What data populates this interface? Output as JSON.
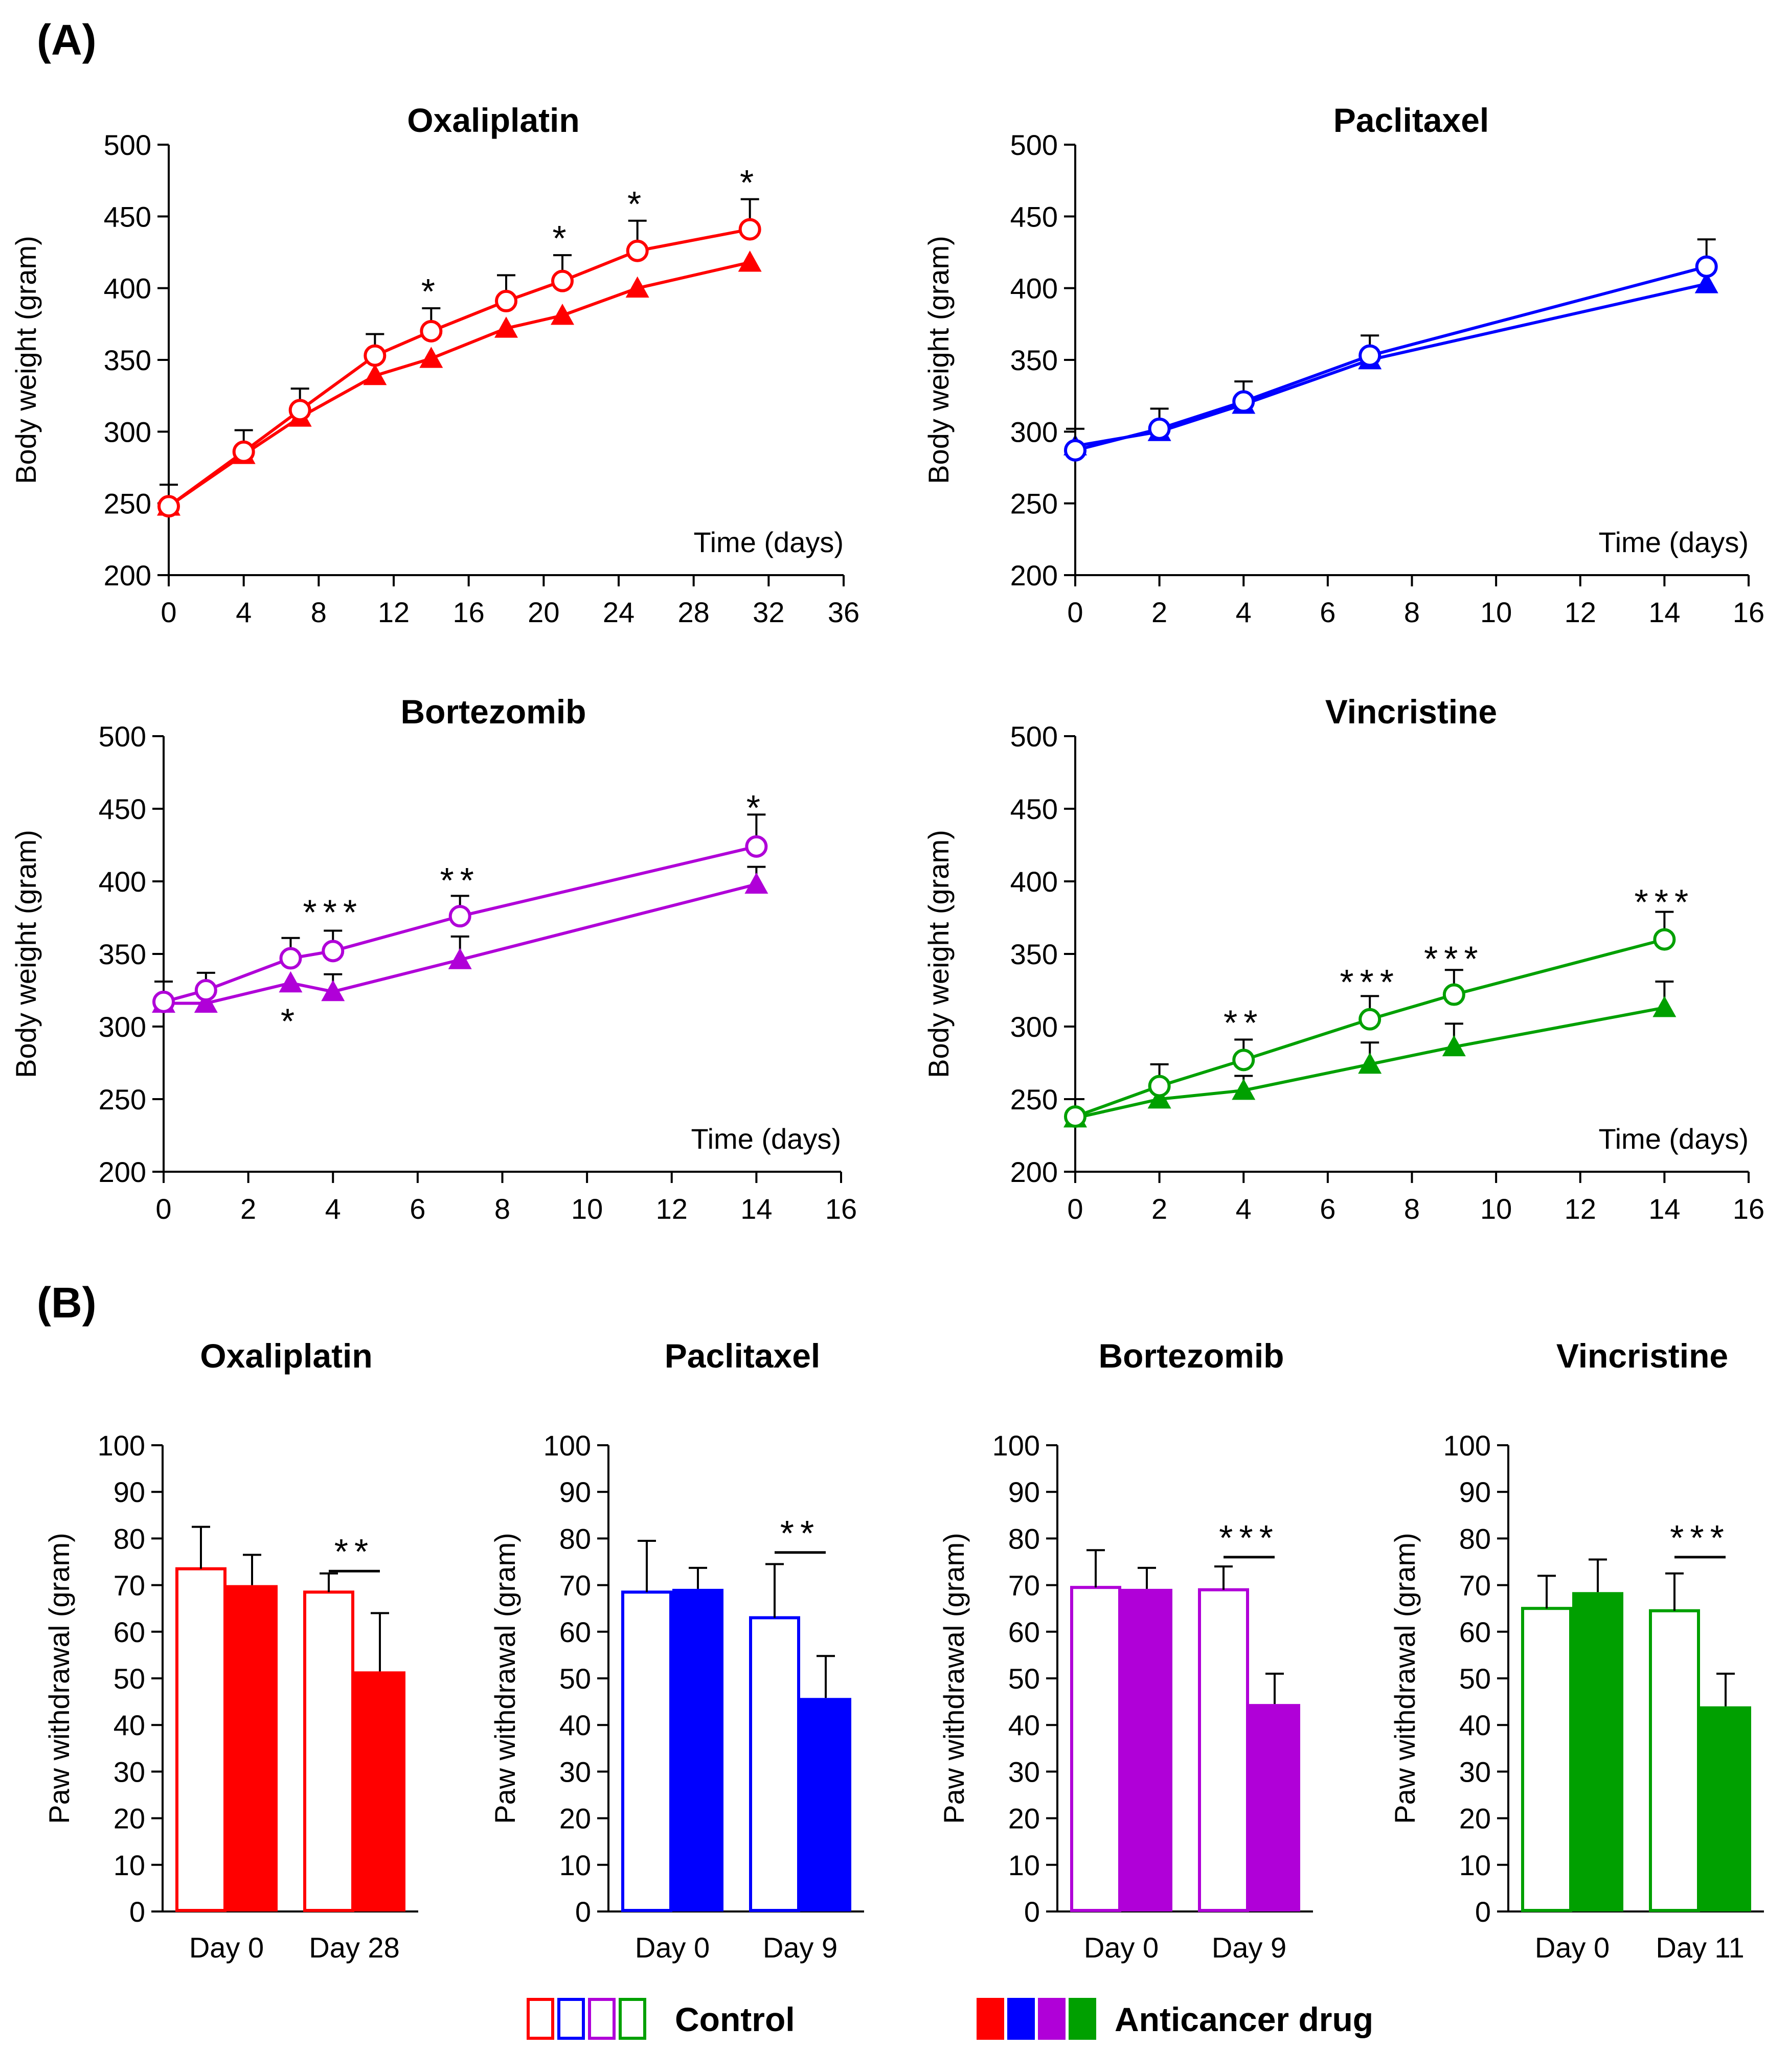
{
  "panel_labels": {
    "a": "(A)",
    "b": "(B)"
  },
  "legend": {
    "control_label": "Control",
    "drug_label": "Anticancer drug",
    "colors": [
      "#ff0000",
      "#0000ff",
      "#b000d8",
      "#00a000"
    ]
  },
  "chart_data": [
    {
      "type": "line",
      "panel": "A",
      "title": "Oxaliplatin",
      "color": "#ff0000",
      "xlabel": "Time (days)",
      "ylabel": "Body weight (gram)",
      "xlim": [
        0,
        36
      ],
      "xticks": [
        0,
        4,
        8,
        12,
        16,
        20,
        24,
        28,
        32,
        36
      ],
      "ylim": [
        200,
        500
      ],
      "yticks": [
        200,
        250,
        300,
        350,
        400,
        450,
        500
      ],
      "series": [
        {
          "name": "Control",
          "marker": "open-circle",
          "x": [
            0,
            4,
            7,
            11,
            14,
            18,
            21,
            25,
            31
          ],
          "y": [
            248,
            286,
            315,
            353,
            370,
            391,
            405,
            426,
            441
          ],
          "err": [
            15,
            15,
            15,
            15,
            16,
            18,
            18,
            21,
            21
          ]
        },
        {
          "name": "Anticancer drug",
          "marker": "filled-triangle",
          "x": [
            0,
            4,
            7,
            11,
            14,
            18,
            21,
            25,
            31
          ],
          "y": [
            248,
            284,
            310,
            339,
            351,
            372,
            381,
            400,
            418
          ],
          "err": [
            0,
            0,
            0,
            0,
            0,
            0,
            0,
            0,
            0
          ]
        }
      ],
      "annotations": [
        {
          "x": 14,
          "y": 397,
          "text": "*"
        },
        {
          "x": 21,
          "y": 434,
          "text": "*"
        },
        {
          "x": 25,
          "y": 458,
          "text": "*"
        },
        {
          "x": 31,
          "y": 473,
          "text": "*"
        }
      ]
    },
    {
      "type": "line",
      "panel": "A",
      "title": "Paclitaxel",
      "color": "#0000ff",
      "xlabel": "Time (days)",
      "ylabel": "Body weight (gram)",
      "xlim": [
        0,
        16
      ],
      "xticks": [
        0,
        2,
        4,
        6,
        8,
        10,
        12,
        14,
        16
      ],
      "ylim": [
        200,
        500
      ],
      "yticks": [
        200,
        250,
        300,
        350,
        400,
        450,
        500
      ],
      "series": [
        {
          "name": "Control",
          "marker": "open-circle",
          "x": [
            0,
            2,
            4,
            7,
            15
          ],
          "y": [
            287,
            302,
            321,
            353,
            415
          ],
          "err": [
            15,
            14,
            14,
            14,
            19
          ]
        },
        {
          "name": "Anticancer drug",
          "marker": "filled-triangle",
          "x": [
            0,
            2,
            4,
            7,
            15
          ],
          "y": [
            290,
            300,
            319,
            350,
            403
          ],
          "err": [
            0,
            0,
            0,
            0,
            0
          ]
        }
      ],
      "annotations": []
    },
    {
      "type": "line",
      "panel": "A",
      "title": "Bortezomib",
      "color": "#b000d8",
      "xlabel": "Time (days)",
      "ylabel": "Body weight (gram)",
      "xlim": [
        0,
        16
      ],
      "xticks": [
        0,
        2,
        4,
        6,
        8,
        10,
        12,
        14,
        16
      ],
      "ylim": [
        200,
        500
      ],
      "yticks": [
        200,
        250,
        300,
        350,
        400,
        450,
        500
      ],
      "series": [
        {
          "name": "Control",
          "marker": "open-circle",
          "x": [
            0,
            1,
            3,
            4,
            7,
            14
          ],
          "y": [
            317,
            325,
            347,
            352,
            376,
            424
          ],
          "err": [
            14,
            12,
            14,
            14,
            14,
            22
          ]
        },
        {
          "name": "Anticancer drug",
          "marker": "filled-triangle",
          "x": [
            0,
            1,
            3,
            4,
            7,
            14
          ],
          "y": [
            316,
            316,
            330,
            324,
            346,
            398
          ],
          "err": [
            0,
            0,
            0,
            12,
            16,
            12
          ]
        }
      ],
      "annotations": [
        {
          "x": 4,
          "y": 378,
          "text": "***"
        },
        {
          "x": 7,
          "y": 400,
          "text": "**"
        },
        {
          "x": 14,
          "y": 450,
          "text": "*"
        },
        {
          "x": 3,
          "y": 303,
          "text": "*"
        }
      ]
    },
    {
      "type": "line",
      "panel": "A",
      "title": "Vincristine",
      "color": "#00a000",
      "xlabel": "Time (days)",
      "ylabel": "Body weight (gram)",
      "xlim": [
        0,
        16
      ],
      "xticks": [
        0,
        2,
        4,
        6,
        8,
        10,
        12,
        14,
        16
      ],
      "ylim": [
        200,
        500
      ],
      "yticks": [
        200,
        250,
        300,
        350,
        400,
        450,
        500
      ],
      "series": [
        {
          "name": "Control",
          "marker": "open-circle",
          "x": [
            0,
            2,
            4,
            7,
            9,
            14
          ],
          "y": [
            238,
            259,
            277,
            305,
            322,
            360
          ],
          "err": [
            12,
            15,
            14,
            16,
            17,
            19
          ]
        },
        {
          "name": "Anticancer drug",
          "marker": "filled-triangle",
          "x": [
            0,
            2,
            4,
            7,
            9,
            14
          ],
          "y": [
            237,
            250,
            256,
            274,
            286,
            313
          ],
          "err": [
            0,
            0,
            10,
            15,
            16,
            18
          ]
        }
      ],
      "annotations": [
        {
          "x": 4,
          "y": 302,
          "text": "**"
        },
        {
          "x": 7,
          "y": 330,
          "text": "***"
        },
        {
          "x": 9,
          "y": 346,
          "text": "***"
        },
        {
          "x": 14,
          "y": 385,
          "text": "***"
        }
      ]
    },
    {
      "type": "bar",
      "panel": "B",
      "title": "Oxaliplatin",
      "color": "#ff0000",
      "ylabel": "Paw withdrawal (gram)",
      "categories": [
        "Day 0",
        "Day 28"
      ],
      "ylim": [
        0,
        100
      ],
      "yticks": [
        0,
        10,
        20,
        30,
        40,
        50,
        60,
        70,
        80,
        90,
        100
      ],
      "series": [
        {
          "name": "Control",
          "fill": "open",
          "values": [
            73.5,
            68.5
          ],
          "err": [
            9,
            4
          ]
        },
        {
          "name": "Anticancer drug",
          "fill": "filled",
          "values": [
            70,
            51.5
          ],
          "err": [
            6.5,
            12.5
          ]
        }
      ],
      "significance": {
        "category": "Day 28",
        "y": 73,
        "text": "**"
      }
    },
    {
      "type": "bar",
      "panel": "B",
      "title": "Paclitaxel",
      "color": "#0000ff",
      "ylabel": "Paw withdrawal (gram)",
      "categories": [
        "Day 0",
        "Day 9"
      ],
      "ylim": [
        0,
        100
      ],
      "yticks": [
        0,
        10,
        20,
        30,
        40,
        50,
        60,
        70,
        80,
        90,
        100
      ],
      "series": [
        {
          "name": "Control",
          "fill": "open",
          "values": [
            68.5,
            63
          ],
          "err": [
            11,
            11.5
          ]
        },
        {
          "name": "Anticancer drug",
          "fill": "filled",
          "values": [
            69.2,
            45.8
          ],
          "err": [
            4.5,
            9
          ]
        }
      ],
      "significance": {
        "category": "Day 9",
        "y": 77,
        "text": "**"
      }
    },
    {
      "type": "bar",
      "panel": "B",
      "title": "Bortezomib",
      "color": "#b000d8",
      "ylabel": "Paw withdrawal (gram)",
      "categories": [
        "Day 0",
        "Day 9"
      ],
      "ylim": [
        0,
        100
      ],
      "yticks": [
        0,
        10,
        20,
        30,
        40,
        50,
        60,
        70,
        80,
        90,
        100
      ],
      "series": [
        {
          "name": "Control",
          "fill": "open",
          "values": [
            69.5,
            69
          ],
          "err": [
            8,
            5
          ]
        },
        {
          "name": "Anticancer drug",
          "fill": "filled",
          "values": [
            69.2,
            44.5
          ],
          "err": [
            4.5,
            6.5
          ]
        }
      ],
      "significance": {
        "category": "Day 9",
        "y": 76,
        "text": "***"
      }
    },
    {
      "type": "bar",
      "panel": "B",
      "title": "Vincristine",
      "color": "#00a000",
      "ylabel": "Paw withdrawal (gram)",
      "categories": [
        "Day 0",
        "Day 11"
      ],
      "ylim": [
        0,
        100
      ],
      "yticks": [
        0,
        10,
        20,
        30,
        40,
        50,
        60,
        70,
        80,
        90,
        100
      ],
      "series": [
        {
          "name": "Control",
          "fill": "open",
          "values": [
            65,
            64.5
          ],
          "err": [
            7,
            8
          ]
        },
        {
          "name": "Anticancer drug",
          "fill": "filled",
          "values": [
            68.5,
            44
          ],
          "err": [
            7,
            7
          ]
        }
      ],
      "significance": {
        "category": "Day 11",
        "y": 76,
        "text": "***"
      }
    }
  ]
}
